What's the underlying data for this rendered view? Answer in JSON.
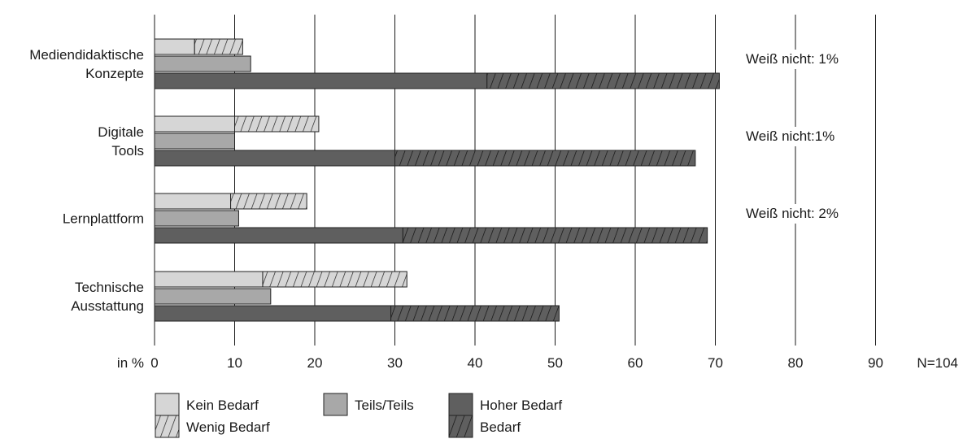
{
  "chart_data": {
    "type": "bar",
    "orientation": "horizontal",
    "stacked_pairs": true,
    "categories": [
      "Mediendidaktische Konzepte",
      "Digitale Tools",
      "Lernplattform",
      "Technische Ausstattung"
    ],
    "category_label_lines": [
      [
        "Mediendidaktische",
        "Konzepte"
      ],
      [
        "Digitale",
        "Tools"
      ],
      [
        "Lernplattform"
      ],
      [
        "Technische",
        "Ausstattung"
      ]
    ],
    "series": [
      {
        "name": "Kein Bedarf",
        "values": [
          5,
          10,
          9.5,
          13.5
        ],
        "color": "#d6d6d6",
        "pattern": "solid",
        "bar_group": "top",
        "stack_order": 1
      },
      {
        "name": "Wenig Bedarf",
        "values": [
          6,
          10.5,
          9.5,
          18
        ],
        "color": "#d6d6d6",
        "pattern": "hatched",
        "bar_group": "top",
        "stack_order": 2
      },
      {
        "name": "Teils/Teils",
        "values": [
          12,
          10,
          10.5,
          14.5
        ],
        "color": "#a8a8a8",
        "pattern": "solid",
        "bar_group": "middle",
        "stack_order": 1
      },
      {
        "name": "Hoher Bedarf",
        "values": [
          41.5,
          30,
          31,
          29.5
        ],
        "color": "#5f5f5f",
        "pattern": "solid",
        "bar_group": "bottom",
        "stack_order": 1
      },
      {
        "name": "Bedarf",
        "values": [
          29,
          37.5,
          38,
          21
        ],
        "color": "#5f5f5f",
        "pattern": "hatched",
        "bar_group": "bottom",
        "stack_order": 2
      }
    ],
    "annotations": [
      "Weiß nicht: 1%",
      "Weiß nicht:1%",
      "Weiß nicht: 2%"
    ],
    "annotated_categories": [
      0,
      1,
      2
    ],
    "xlabel": "in %",
    "x_ticks": [
      0,
      10,
      20,
      30,
      40,
      50,
      60,
      70,
      80,
      90
    ],
    "xlim": [
      0,
      90
    ],
    "sample_note": "N=104",
    "grid": true,
    "legend_placement": "bottom-left",
    "legend": [
      {
        "label": "Kein Bedarf",
        "series": 0
      },
      {
        "label": "Wenig Bedarf",
        "series": 1
      },
      {
        "label": "Teils/Teils",
        "series": 2
      },
      {
        "label": "Hoher Bedarf",
        "series": 3
      },
      {
        "label": "Bedarf",
        "series": 4
      }
    ]
  }
}
